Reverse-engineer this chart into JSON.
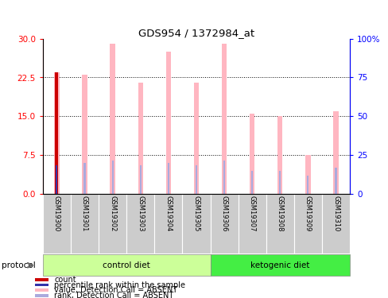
{
  "title": "GDS954 / 1372984_at",
  "samples": [
    "GSM19300",
    "GSM19301",
    "GSM19302",
    "GSM19303",
    "GSM19304",
    "GSM19305",
    "GSM19306",
    "GSM19307",
    "GSM19308",
    "GSM19309",
    "GSM19310"
  ],
  "value_pink": [
    23.5,
    23.0,
    29.0,
    21.5,
    27.5,
    21.5,
    29.0,
    15.5,
    15.0,
    7.5,
    16.0
  ],
  "rank_blue": [
    5.5,
    6.0,
    6.5,
    5.5,
    6.0,
    5.5,
    6.5,
    4.5,
    4.5,
    3.5,
    5.0
  ],
  "count_red_val": 23.5,
  "count_red_idx": 0,
  "left_ylim": [
    0,
    30
  ],
  "left_yticks": [
    0,
    7.5,
    15,
    22.5,
    30
  ],
  "right_ylim": [
    0,
    100
  ],
  "right_yticks": [
    0,
    25,
    50,
    75,
    100
  ],
  "right_yticklabels": [
    "0",
    "25",
    "50",
    "75",
    "100%"
  ],
  "bar_color_pink": "#FFB6C1",
  "bar_color_red": "#CC0000",
  "bar_color_blue_dark": "#3333AA",
  "bar_color_blue_light": "#AAAADD",
  "label_bg_color": "#CCCCCC",
  "bg_color_control": "#CCFF99",
  "bg_color_ketogenic": "#44EE44",
  "legend_count": "count",
  "legend_percentile": "percentile rank within the sample",
  "legend_value_absent": "value, Detection Call = ABSENT",
  "legend_rank_absent": "rank, Detection Call = ABSENT",
  "group_label_control": "control diet",
  "group_label_ketogenic": "ketogenic diet",
  "protocol_label": "protocol",
  "n_control": 6,
  "n_total": 11
}
